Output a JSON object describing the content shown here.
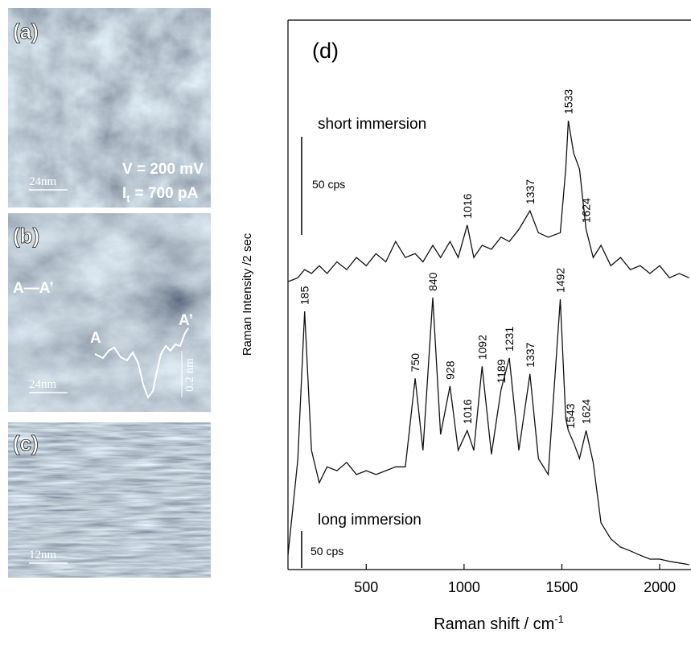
{
  "panels": {
    "a": {
      "label": "(a)",
      "scale": "24nm",
      "voltage": "V = 200 mV",
      "current_symbol": "I",
      "current_sub": "t",
      "current_text": "= 700 pA"
    },
    "b": {
      "label": "(b)",
      "scale": "24nm",
      "line_label": "A—A’",
      "start": "A",
      "end": "A’",
      "height": "0.2 nm"
    },
    "c": {
      "label": "(c)",
      "scale": "12nm"
    }
  },
  "chart_data": {
    "type": "line",
    "panel_label": "(d)",
    "x_label": "Raman shift / cm",
    "x_label_sup": "-1",
    "y_label": "Raman Intensity /2 sec",
    "scale_bar_label": "50 cps",
    "x": [
      100,
      150,
      185,
      220,
      260,
      300,
      350,
      400,
      450,
      500,
      550,
      600,
      650,
      700,
      750,
      790,
      840,
      880,
      928,
      970,
      1016,
      1050,
      1092,
      1140,
      1189,
      1231,
      1280,
      1337,
      1380,
      1430,
      1492,
      1520,
      1533,
      1560,
      1590,
      1624,
      1660,
      1700,
      1750,
      1800,
      1850,
      1900,
      1950,
      2000,
      2050,
      2100,
      2150
    ],
    "series": [
      {
        "name": "short immersion",
        "color": "#111111",
        "values": [
          52.4,
          53.1,
          54.6,
          53.9,
          55.3,
          53.9,
          56,
          54.6,
          56.8,
          55.3,
          57.5,
          56,
          59.7,
          56.8,
          57.5,
          56,
          59,
          56.8,
          59.7,
          56.8,
          62.7,
          56.8,
          59,
          58.3,
          60.5,
          59.7,
          61.9,
          65.3,
          61.3,
          60.5,
          61.3,
          72.9,
          81.7,
          75.8,
          72.9,
          61.9,
          56.8,
          59,
          55.3,
          56.8,
          54.6,
          55.3,
          53.9,
          55.3,
          53.1,
          53.9,
          53.1
        ],
        "peak_labels": [
          1016,
          1337,
          1533,
          1624
        ]
      },
      {
        "name": "long immersion",
        "color": "#111111",
        "values": [
          2.6,
          20,
          47,
          21.7,
          15.8,
          18.7,
          18,
          19.5,
          17.3,
          18,
          17.3,
          18,
          18.7,
          18.7,
          34.8,
          21.7,
          49.5,
          24.6,
          33.4,
          21.7,
          25.3,
          21.7,
          37,
          21,
          32.7,
          38.5,
          21.7,
          35.6,
          20.2,
          17.3,
          49.2,
          27.5,
          25.3,
          23.1,
          20.2,
          25.3,
          19.5,
          8.5,
          5.6,
          4.1,
          3.4,
          2.6,
          1.9,
          1.9,
          1.5,
          1.2,
          0.9
        ],
        "peak_labels": [
          185,
          750,
          840,
          928,
          1016,
          1092,
          1189,
          1231,
          1337,
          1492,
          1543,
          1624
        ]
      }
    ],
    "xlim": [
      100,
      2160
    ],
    "ylim": [
      0,
      100
    ],
    "xticks": [
      500,
      1000,
      1500,
      2000
    ]
  }
}
